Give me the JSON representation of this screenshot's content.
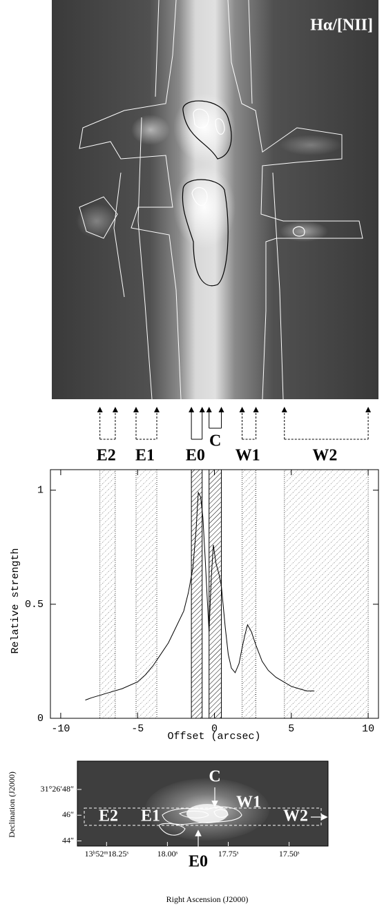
{
  "chart_data": [
    {
      "type": "image",
      "title": "Hα/[NII]"
    },
    {
      "type": "line",
      "xlabel": "Offset (arcsec)",
      "ylabel": "Relative strength",
      "x": [
        -8.4,
        -8,
        -7,
        -6,
        -5,
        -4.5,
        -4,
        -3.6,
        -3,
        -2.5,
        -2,
        -1.7,
        -1.4,
        -1.2,
        -1.05,
        -0.9,
        -0.75,
        -0.6,
        -0.45,
        -0.35,
        -0.2,
        -0.07,
        0.1,
        0.3,
        0.45,
        0.7,
        0.9,
        1.1,
        1.35,
        1.6,
        1.8,
        2.0,
        2.15,
        2.4,
        2.7,
        3.1,
        3.5,
        4.0,
        4.5,
        5.0,
        5.5,
        6.0,
        6.5
      ],
      "values": [
        0.08,
        0.09,
        0.11,
        0.13,
        0.16,
        0.19,
        0.23,
        0.27,
        0.33,
        0.4,
        0.47,
        0.55,
        0.66,
        0.82,
        0.99,
        0.97,
        0.88,
        0.7,
        0.5,
        0.38,
        0.62,
        0.76,
        0.68,
        0.63,
        0.58,
        0.4,
        0.28,
        0.22,
        0.2,
        0.24,
        0.31,
        0.37,
        0.41,
        0.38,
        0.32,
        0.25,
        0.21,
        0.18,
        0.16,
        0.14,
        0.13,
        0.12,
        0.12
      ],
      "color": "#000000",
      "xlim": [
        -10.67,
        10.67
      ],
      "ylim": [
        0,
        1.09
      ],
      "xticks": [
        -10,
        -5,
        0,
        5,
        10
      ],
      "yticks": [
        0,
        0.5,
        1
      ],
      "regions": [
        {
          "name": "E2",
          "start": -7.45,
          "end": -6.45,
          "hatch": "sparse"
        },
        {
          "name": "E1",
          "start": -5.1,
          "end": -3.75,
          "hatch": "sparse"
        },
        {
          "name": "E0",
          "start": -1.5,
          "end": -0.8,
          "hatch": "dense"
        },
        {
          "name": "C",
          "start": -0.35,
          "end": 0.45,
          "hatch": "dense"
        },
        {
          "name": "W1",
          "start": 1.8,
          "end": 2.7,
          "hatch": "sparse"
        },
        {
          "name": "W2",
          "start": 4.55,
          "end": 10,
          "hatch": "sparse"
        }
      ]
    },
    {
      "type": "image",
      "xlabel": "Right Ascension (J2000)",
      "ylabel": "Declination (J2000)",
      "xlim": [
        18.37,
        17.34
      ],
      "ylim": [
        43.6,
        50.2
      ],
      "xticks": [
        {
          "value": 18.25,
          "label": "13ʰ52ᵐ18.25ˢ"
        },
        {
          "value": 18.0,
          "label": "18.00ˢ"
        },
        {
          "value": 17.75,
          "label": "17.75ˢ"
        },
        {
          "value": 17.5,
          "label": "17.50ˢ"
        }
      ],
      "yticks": [
        {
          "value": 48,
          "label": "31°26′48″"
        },
        {
          "value": 46,
          "label": "46″"
        },
        {
          "value": 44,
          "label": "44″"
        }
      ],
      "labels": [
        "C",
        "W1",
        "E2",
        "E1",
        "W2",
        "E0"
      ]
    }
  ]
}
